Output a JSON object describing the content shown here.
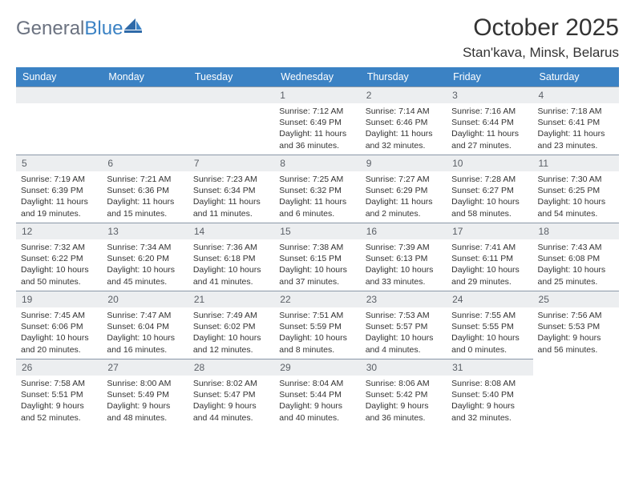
{
  "brand": {
    "part1": "General",
    "part2": "Blue"
  },
  "title": "October 2025",
  "location": "Stan'kava, Minsk, Belarus",
  "colors": {
    "header_bg": "#3b82c4",
    "header_text": "#ffffff",
    "daynum_bg": "#eceef0",
    "daynum_text": "#5a5f66",
    "border": "#8a98a8",
    "body_text": "#333333",
    "logo_gray": "#6b7280",
    "logo_blue": "#3b82c4"
  },
  "weekdays": [
    "Sunday",
    "Monday",
    "Tuesday",
    "Wednesday",
    "Thursday",
    "Friday",
    "Saturday"
  ],
  "weeks": [
    [
      null,
      null,
      null,
      {
        "day": "1",
        "sunrise": "Sunrise: 7:12 AM",
        "sunset": "Sunset: 6:49 PM",
        "daylight": "Daylight: 11 hours and 36 minutes."
      },
      {
        "day": "2",
        "sunrise": "Sunrise: 7:14 AM",
        "sunset": "Sunset: 6:46 PM",
        "daylight": "Daylight: 11 hours and 32 minutes."
      },
      {
        "day": "3",
        "sunrise": "Sunrise: 7:16 AM",
        "sunset": "Sunset: 6:44 PM",
        "daylight": "Daylight: 11 hours and 27 minutes."
      },
      {
        "day": "4",
        "sunrise": "Sunrise: 7:18 AM",
        "sunset": "Sunset: 6:41 PM",
        "daylight": "Daylight: 11 hours and 23 minutes."
      }
    ],
    [
      {
        "day": "5",
        "sunrise": "Sunrise: 7:19 AM",
        "sunset": "Sunset: 6:39 PM",
        "daylight": "Daylight: 11 hours and 19 minutes."
      },
      {
        "day": "6",
        "sunrise": "Sunrise: 7:21 AM",
        "sunset": "Sunset: 6:36 PM",
        "daylight": "Daylight: 11 hours and 15 minutes."
      },
      {
        "day": "7",
        "sunrise": "Sunrise: 7:23 AM",
        "sunset": "Sunset: 6:34 PM",
        "daylight": "Daylight: 11 hours and 11 minutes."
      },
      {
        "day": "8",
        "sunrise": "Sunrise: 7:25 AM",
        "sunset": "Sunset: 6:32 PM",
        "daylight": "Daylight: 11 hours and 6 minutes."
      },
      {
        "day": "9",
        "sunrise": "Sunrise: 7:27 AM",
        "sunset": "Sunset: 6:29 PM",
        "daylight": "Daylight: 11 hours and 2 minutes."
      },
      {
        "day": "10",
        "sunrise": "Sunrise: 7:28 AM",
        "sunset": "Sunset: 6:27 PM",
        "daylight": "Daylight: 10 hours and 58 minutes."
      },
      {
        "day": "11",
        "sunrise": "Sunrise: 7:30 AM",
        "sunset": "Sunset: 6:25 PM",
        "daylight": "Daylight: 10 hours and 54 minutes."
      }
    ],
    [
      {
        "day": "12",
        "sunrise": "Sunrise: 7:32 AM",
        "sunset": "Sunset: 6:22 PM",
        "daylight": "Daylight: 10 hours and 50 minutes."
      },
      {
        "day": "13",
        "sunrise": "Sunrise: 7:34 AM",
        "sunset": "Sunset: 6:20 PM",
        "daylight": "Daylight: 10 hours and 45 minutes."
      },
      {
        "day": "14",
        "sunrise": "Sunrise: 7:36 AM",
        "sunset": "Sunset: 6:18 PM",
        "daylight": "Daylight: 10 hours and 41 minutes."
      },
      {
        "day": "15",
        "sunrise": "Sunrise: 7:38 AM",
        "sunset": "Sunset: 6:15 PM",
        "daylight": "Daylight: 10 hours and 37 minutes."
      },
      {
        "day": "16",
        "sunrise": "Sunrise: 7:39 AM",
        "sunset": "Sunset: 6:13 PM",
        "daylight": "Daylight: 10 hours and 33 minutes."
      },
      {
        "day": "17",
        "sunrise": "Sunrise: 7:41 AM",
        "sunset": "Sunset: 6:11 PM",
        "daylight": "Daylight: 10 hours and 29 minutes."
      },
      {
        "day": "18",
        "sunrise": "Sunrise: 7:43 AM",
        "sunset": "Sunset: 6:08 PM",
        "daylight": "Daylight: 10 hours and 25 minutes."
      }
    ],
    [
      {
        "day": "19",
        "sunrise": "Sunrise: 7:45 AM",
        "sunset": "Sunset: 6:06 PM",
        "daylight": "Daylight: 10 hours and 20 minutes."
      },
      {
        "day": "20",
        "sunrise": "Sunrise: 7:47 AM",
        "sunset": "Sunset: 6:04 PM",
        "daylight": "Daylight: 10 hours and 16 minutes."
      },
      {
        "day": "21",
        "sunrise": "Sunrise: 7:49 AM",
        "sunset": "Sunset: 6:02 PM",
        "daylight": "Daylight: 10 hours and 12 minutes."
      },
      {
        "day": "22",
        "sunrise": "Sunrise: 7:51 AM",
        "sunset": "Sunset: 5:59 PM",
        "daylight": "Daylight: 10 hours and 8 minutes."
      },
      {
        "day": "23",
        "sunrise": "Sunrise: 7:53 AM",
        "sunset": "Sunset: 5:57 PM",
        "daylight": "Daylight: 10 hours and 4 minutes."
      },
      {
        "day": "24",
        "sunrise": "Sunrise: 7:55 AM",
        "sunset": "Sunset: 5:55 PM",
        "daylight": "Daylight: 10 hours and 0 minutes."
      },
      {
        "day": "25",
        "sunrise": "Sunrise: 7:56 AM",
        "sunset": "Sunset: 5:53 PM",
        "daylight": "Daylight: 9 hours and 56 minutes."
      }
    ],
    [
      {
        "day": "26",
        "sunrise": "Sunrise: 7:58 AM",
        "sunset": "Sunset: 5:51 PM",
        "daylight": "Daylight: 9 hours and 52 minutes."
      },
      {
        "day": "27",
        "sunrise": "Sunrise: 8:00 AM",
        "sunset": "Sunset: 5:49 PM",
        "daylight": "Daylight: 9 hours and 48 minutes."
      },
      {
        "day": "28",
        "sunrise": "Sunrise: 8:02 AM",
        "sunset": "Sunset: 5:47 PM",
        "daylight": "Daylight: 9 hours and 44 minutes."
      },
      {
        "day": "29",
        "sunrise": "Sunrise: 8:04 AM",
        "sunset": "Sunset: 5:44 PM",
        "daylight": "Daylight: 9 hours and 40 minutes."
      },
      {
        "day": "30",
        "sunrise": "Sunrise: 8:06 AM",
        "sunset": "Sunset: 5:42 PM",
        "daylight": "Daylight: 9 hours and 36 minutes."
      },
      {
        "day": "31",
        "sunrise": "Sunrise: 8:08 AM",
        "sunset": "Sunset: 5:40 PM",
        "daylight": "Daylight: 9 hours and 32 minutes."
      },
      null
    ]
  ]
}
